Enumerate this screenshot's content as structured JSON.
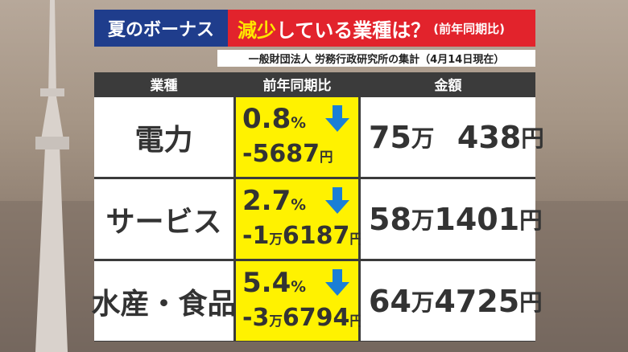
{
  "header": {
    "label": "夏のボーナス",
    "title_highlight": "減少",
    "title_rest": "している業種は？",
    "note": "(前年同期比)",
    "source": "一般財団法人 労務行政研究所の集計（4月14日現在）"
  },
  "table": {
    "columns": [
      "業種",
      "前年同期比",
      "金額"
    ],
    "rows": [
      {
        "industry": "電力",
        "change": "0.8%",
        "diff": "-5687円",
        "amount": "75万　438円"
      },
      {
        "industry": "サービス",
        "change": "2.7%",
        "diff": "-1万6187円",
        "amount": "58万1401円"
      },
      {
        "industry": "水産・食品",
        "change": "5.4%",
        "diff": "-3万6794円",
        "amount": "64万4725円"
      }
    ]
  }
}
